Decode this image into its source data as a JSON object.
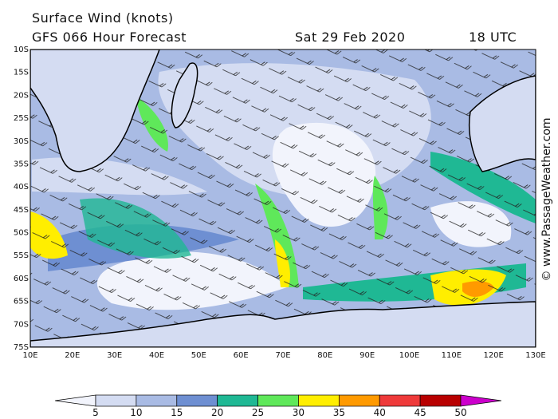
{
  "header": {
    "title": "Surface Wind (knots)",
    "subtitle": "GFS 066 Hour Forecast",
    "date": "Sat 29 Feb 2020",
    "time": "18 UTC"
  },
  "map": {
    "lat_labels": [
      "10S",
      "15S",
      "20S",
      "25S",
      "30S",
      "35S",
      "40S",
      "45S",
      "50S",
      "55S",
      "60S",
      "65S",
      "70S",
      "75S"
    ],
    "lon_labels": [
      "10E",
      "20E",
      "30E",
      "40E",
      "50E",
      "60E",
      "70E",
      "80E",
      "90E",
      "100E",
      "110E",
      "120E",
      "130E"
    ]
  },
  "colorbar": {
    "ticks": [
      5,
      10,
      15,
      20,
      25,
      30,
      35,
      40,
      45,
      50
    ],
    "colors": [
      "#f2f4fc",
      "#d4dcf2",
      "#a9bbe4",
      "#6e8fd2",
      "#1fb894",
      "#5fe85a",
      "#ffee00",
      "#ff9a00",
      "#ee3a3a",
      "#b80000",
      "#cc00cc"
    ]
  },
  "credit": "© www.PassageWeather.com"
}
